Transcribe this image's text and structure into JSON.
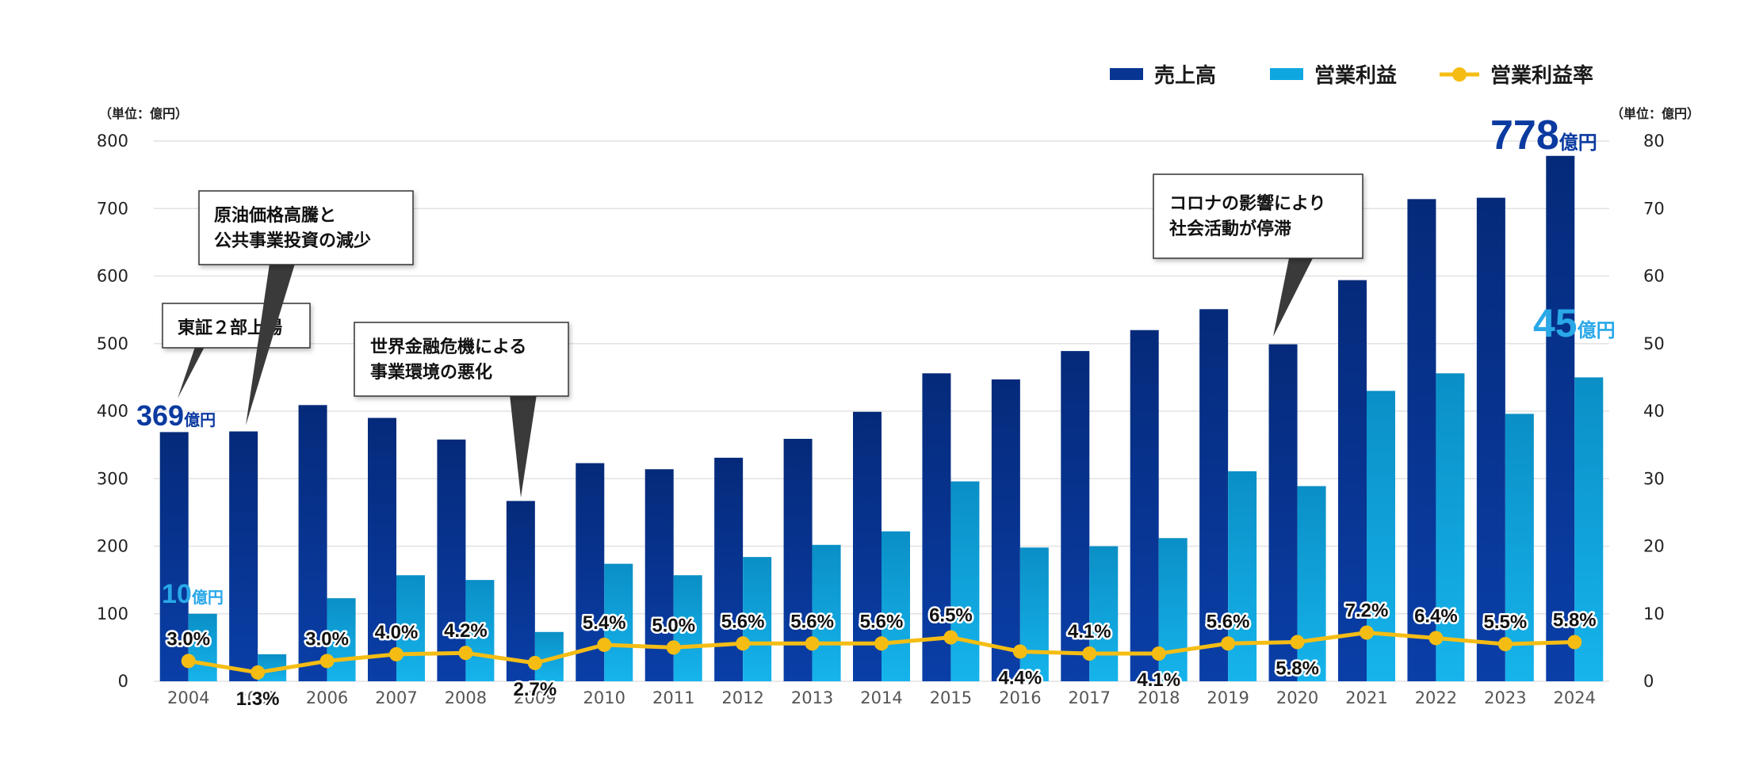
{
  "chart_data": {
    "type": "bar",
    "categories": [
      "2004",
      "2005",
      "2006",
      "2007",
      "2008",
      "2009",
      "2010",
      "2011",
      "2012",
      "2013",
      "2014",
      "2015",
      "2016",
      "2017",
      "2018",
      "2019",
      "2020",
      "2021",
      "2022",
      "2023",
      "2024"
    ],
    "series": [
      {
        "name": "売上高",
        "axis": "left",
        "color": "#063592",
        "values": [
          369,
          370,
          409,
          390,
          358,
          267,
          323,
          314,
          331,
          359,
          399,
          456,
          447,
          489,
          520,
          551,
          499,
          594,
          714,
          716,
          778
        ]
      },
      {
        "name": "営業利益",
        "axis": "left-scaled",
        "color": "#0fa7e0",
        "values": [
          10,
          4,
          12.3,
          15.7,
          15,
          7.3,
          17.4,
          15.7,
          18.4,
          20.2,
          22.2,
          29.6,
          19.8,
          20,
          21.2,
          31.1,
          28.9,
          43,
          45.6,
          39.6,
          45
        ]
      },
      {
        "name": "営業利益率",
        "type": "line",
        "axis": "right",
        "color": "#f5bd14",
        "values": [
          3.0,
          1.3,
          3.0,
          4.0,
          4.2,
          2.7,
          5.4,
          5.0,
          5.6,
          5.6,
          5.6,
          6.5,
          4.4,
          4.1,
          4.1,
          5.6,
          5.8,
          7.2,
          6.4,
          5.5,
          5.8
        ],
        "labels": [
          "3.0%",
          "1.3%",
          "3.0%",
          "4.0%",
          "4.2%",
          "2.7%",
          "5.4%",
          "5.0%",
          "5.6%",
          "5.6%",
          "5.6%",
          "6.5%",
          "4.4%",
          "4.1%",
          "4.1%",
          "5.6%",
          "5.8%",
          "7.2%",
          "6.4%",
          "5.5%",
          "5.8%"
        ],
        "label_side": [
          "above",
          "below",
          "above",
          "above",
          "above",
          "below",
          "above",
          "above",
          "above",
          "above",
          "above",
          "above",
          "below",
          "above",
          "below",
          "above",
          "below",
          "above",
          "above",
          "above",
          "above"
        ]
      }
    ],
    "left_axis": {
      "label": "（単位：億円）",
      "ylim": [
        0,
        800
      ],
      "ticks": [
        "0",
        "100",
        "200",
        "300",
        "400",
        "500",
        "600",
        "700",
        "800"
      ]
    },
    "right_axis": {
      "label": "（単位：億円）",
      "ylim": [
        0,
        80
      ],
      "ticks": [
        "0",
        "10",
        "20",
        "30",
        "40",
        "50",
        "60",
        "70",
        "80"
      ]
    },
    "legend": [
      "売上高",
      "営業利益",
      "営業利益率"
    ],
    "legend_position": "top-right",
    "grid": true
  },
  "annotations": {
    "start_sales": {
      "number": "369",
      "unit": "億円",
      "color": "#0b3aa0"
    },
    "start_profit": {
      "number": "10",
      "unit": "億円",
      "color": "#29a8e8"
    },
    "end_sales": {
      "number": "778",
      "unit": "億円",
      "color": "#0b3aa0"
    },
    "end_profit": {
      "number": "45",
      "unit": "億円",
      "color": "#29a8e8"
    },
    "callouts": [
      {
        "lines": [
          "東証２部上場"
        ]
      },
      {
        "lines": [
          "原油価格高騰と",
          "公共事業投資の減少"
        ]
      },
      {
        "lines": [
          "世界金融危機による",
          "事業環境の悪化"
        ]
      },
      {
        "lines": [
          "コロナの影響により",
          "社会活動が停滞"
        ]
      }
    ]
  }
}
